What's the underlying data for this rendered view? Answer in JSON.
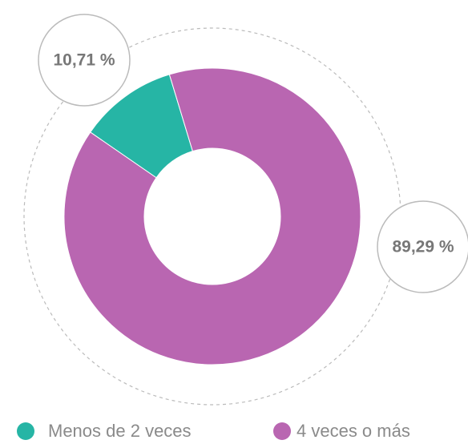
{
  "chart_data": {
    "type": "pie",
    "categories": [
      "Menos de 2 veces",
      "4 veces o más"
    ],
    "values": [
      10.71,
      89.29
    ],
    "value_labels": [
      "10,71 %",
      "89,29 %"
    ],
    "colors": [
      "#26b5a5",
      "#b966b1"
    ]
  }
}
